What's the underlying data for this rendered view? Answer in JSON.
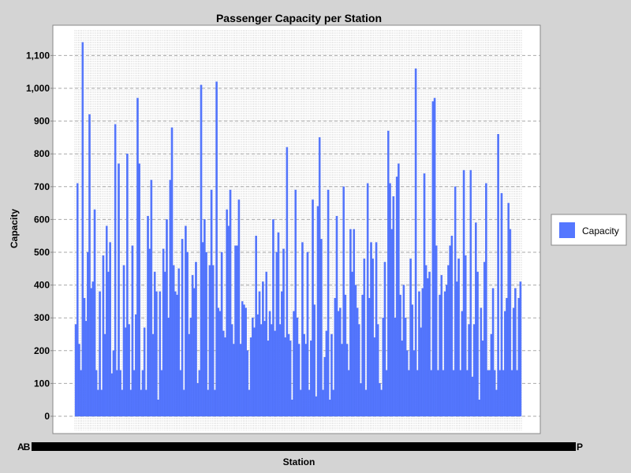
{
  "chart_data": {
    "type": "bar",
    "title": "Passenger Capacity per Station",
    "xlabel": "Station",
    "ylabel": "Capacity",
    "xtick_start": "AB",
    "xtick_end": "P",
    "ylim": [
      -50,
      1180
    ],
    "yticks": [
      0,
      100,
      200,
      300,
      400,
      500,
      600,
      700,
      800,
      900,
      1000,
      1100
    ],
    "ytick_labels": [
      "0",
      "100",
      "200",
      "300",
      "400",
      "500",
      "600",
      "700",
      "800",
      "900",
      "1,000",
      "1,100"
    ],
    "grid": true,
    "legend": {
      "position": "right",
      "entries": [
        "Capacity"
      ]
    },
    "series": [
      {
        "name": "Capacity",
        "color": "#5577ff",
        "values": [
          280,
          710,
          220,
          140,
          1140,
          360,
          290,
          500,
          920,
          390,
          410,
          630,
          140,
          80,
          380,
          80,
          490,
          250,
          580,
          440,
          530,
          130,
          200,
          890,
          140,
          770,
          140,
          80,
          460,
          270,
          800,
          280,
          80,
          520,
          140,
          310,
          970,
          770,
          80,
          140,
          270,
          80,
          610,
          510,
          720,
          250,
          440,
          380,
          50,
          380,
          140,
          510,
          440,
          600,
          300,
          720,
          880,
          460,
          380,
          370,
          450,
          140,
          540,
          80,
          580,
          500,
          250,
          300,
          430,
          390,
          470,
          100,
          140,
          1010,
          530,
          600,
          500,
          80,
          460,
          690,
          460,
          80,
          1020,
          330,
          320,
          500,
          260,
          240,
          630,
          580,
          690,
          280,
          220,
          520,
          520,
          660,
          220,
          350,
          340,
          330,
          200,
          80,
          240,
          300,
          270,
          550,
          310,
          380,
          280,
          410,
          290,
          440,
          230,
          320,
          280,
          600,
          260,
          500,
          560,
          280,
          380,
          510,
          240,
          820,
          250,
          230,
          50,
          320,
          690,
          300,
          220,
          80,
          530,
          250,
          220,
          500,
          80,
          230,
          660,
          340,
          60,
          640,
          850,
          540,
          80,
          180,
          260,
          690,
          50,
          250,
          80,
          360,
          610,
          320,
          330,
          220,
          700,
          370,
          220,
          140,
          570,
          440,
          570,
          400,
          330,
          280,
          100,
          370,
          480,
          80,
          710,
          360,
          530,
          480,
          240,
          530,
          280,
          100,
          80,
          300,
          470,
          140,
          870,
          710,
          570,
          670,
          300,
          730,
          770,
          370,
          230,
          400,
          300,
          200,
          140,
          480,
          340,
          200,
          1060,
          140,
          380,
          270,
          390,
          740,
          460,
          420,
          440,
          140,
          960,
          970,
          520,
          140,
          370,
          430,
          140,
          380,
          400,
          460,
          520,
          550,
          140,
          700,
          410,
          480,
          140,
          320,
          750,
          490,
          140,
          280,
          750,
          120,
          280,
          590,
          440,
          50,
          330,
          230,
          470,
          710,
          140,
          140,
          250,
          390,
          140,
          80,
          860,
          140,
          680,
          140,
          320,
          360,
          650,
          570,
          140,
          330,
          390,
          140,
          360,
          410
        ]
      }
    ]
  }
}
